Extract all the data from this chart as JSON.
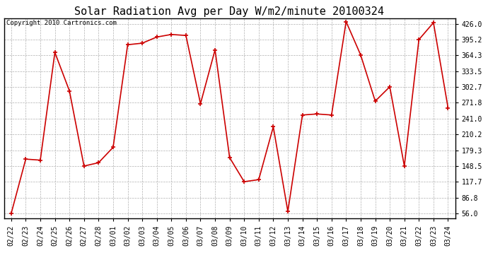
{
  "title": "Solar Radiation Avg per Day W/m2/minute 20100324",
  "copyright": "Copyright 2010 Cartronics.com",
  "dates": [
    "02/22",
    "02/23",
    "02/24",
    "02/25",
    "02/26",
    "02/27",
    "02/28",
    "03/01",
    "03/02",
    "03/03",
    "03/04",
    "03/05",
    "03/06",
    "03/07",
    "03/08",
    "03/09",
    "03/10",
    "03/11",
    "03/12",
    "03/13",
    "03/14",
    "03/15",
    "03/16",
    "03/17",
    "03/18",
    "03/19",
    "03/20",
    "03/21",
    "03/22",
    "03/23",
    "03/24"
  ],
  "values": [
    56.0,
    162.0,
    160.0,
    370.0,
    295.0,
    148.5,
    155.0,
    185.0,
    385.0,
    388.0,
    400.0,
    405.0,
    403.0,
    270.0,
    375.0,
    165.0,
    118.0,
    122.0,
    225.0,
    60.0,
    248.0,
    250.0,
    248.0,
    430.0,
    365.0,
    275.0,
    303.0,
    148.5,
    395.0,
    428.0,
    262.0
  ],
  "y_ticks": [
    56.0,
    86.8,
    117.7,
    148.5,
    179.3,
    210.2,
    241.0,
    271.8,
    302.7,
    333.5,
    364.3,
    395.2,
    426.0
  ],
  "line_color": "#cc0000",
  "marker": "+",
  "bg_color": "#ffffff",
  "plot_bg_color": "#ffffff",
  "grid_color": "#b0b0b0",
  "title_fontsize": 11,
  "copyright_fontsize": 6.5,
  "tick_fontsize": 7,
  "ylim_min": 46.0,
  "ylim_max": 436.0
}
